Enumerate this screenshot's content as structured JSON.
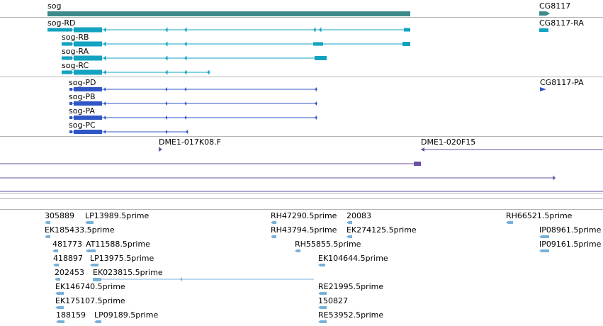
{
  "colors": {
    "gene": "#3e8a8a",
    "transcript_cyan": "#13a3c1",
    "transcript_blue": "#3056c6",
    "bac": "#6a4fa3",
    "est": "#78b0d8",
    "separator": "#b4b4b4"
  },
  "genes": {
    "sog": "sog",
    "cg8117": "CG8117"
  },
  "transcripts": {
    "rd": "sog-RD",
    "rb": "sog-RB",
    "ra": "sog-RA",
    "rc": "sog-RC",
    "cg8117_ra": "CG8117-RA",
    "pd": "sog-PD",
    "pb": "sog-PB",
    "pa": "sog-PA",
    "pc": "sog-PC",
    "cg8117_pa": "CG8117-PA"
  },
  "clones": {
    "c017k08": "DME1-017K08.F",
    "c020f15": "DME1-020F15"
  },
  "ests": [
    "305889",
    "LP13989.5prime",
    "RH47290.5prime",
    "20083",
    "RH66521.5prime",
    "EK185433.5prime",
    "RH43794.5prime",
    "EK274125.5prime",
    "IP08961.5prime",
    "481773",
    "AT11588.5prime",
    "RH55855.5prime",
    "IP09161.5prime",
    "418897",
    "LP13975.5prime",
    "EK104644.5prime",
    "202453",
    "EK023815.5prime",
    "EK146740.5prime",
    "RE21995.5prime",
    "EK175107.5prime",
    "150827",
    "188159",
    "LP09189.5prime",
    "RE53952.5prime"
  ]
}
